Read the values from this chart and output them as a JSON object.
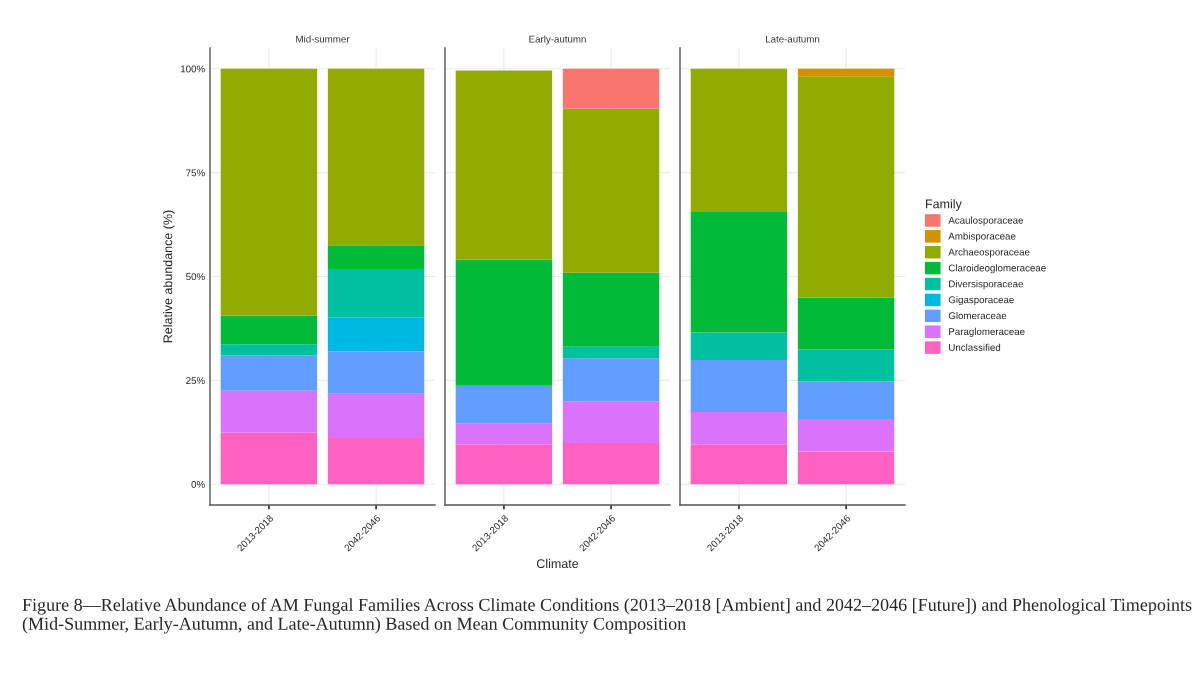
{
  "chart_data": [
    {
      "type": "bar",
      "title": "Mid-summer",
      "ylabel": "Relative abundance (%)",
      "categories": [
        "2013-2018",
        "2042-2046"
      ],
      "stacked": true,
      "ylim": [
        -5,
        105
      ],
      "yticks": [
        {
          "value": 0,
          "label": "0%"
        },
        {
          "value": 25,
          "label": "25%"
        },
        {
          "value": 50,
          "label": "50%"
        },
        {
          "value": 75,
          "label": "75%"
        },
        {
          "value": 100,
          "label": "100%"
        }
      ],
      "grid": true,
      "annotations": [
        "Figure 8—Relative Abundance of AM Fungal Families Across Climate Conditions (2013–2018 [Ambient] and 2042–2046 [Future]) and Phenological Timepoints (Mid-Summer, Early-Autumn, and Late-Autumn) Based on Mean Community Composition"
      ],
      "series": [
        {
          "color": "#ff61c3",
          "values": [
            12.4,
            11.1
          ]
        },
        {
          "color": "#db72fb",
          "values": [
            10.1,
            10.7
          ]
        },
        {
          "color": "#619cff",
          "values": [
            8.5,
            10.2
          ]
        },
        {
          "color": "#00b9e3",
          "values": [
            null,
            8.2
          ]
        },
        {
          "color": "#00c19f",
          "values": [
            2.7,
            11.6
          ]
        },
        {
          "color": "#00ba38",
          "values": [
            6.9,
            5.7
          ]
        },
        {
          "color": "#93aa00",
          "values": [
            59.4,
            42.5
          ]
        },
        {
          "color": "#d39200",
          "values": [
            null,
            null
          ]
        },
        {
          "color": "#f8766d",
          "values": [
            null,
            null
          ]
        }
      ]
    },
    {
      "type": "bar",
      "title": "Early-autumn",
      "xlabel": "Climate",
      "categories": [
        "2013-2018",
        "2042-2046"
      ],
      "stacked": true,
      "ylim": [
        -5,
        105
      ],
      "tick_labels": "x",
      "grid": true,
      "series": [
        {
          "color": "#ff61c3",
          "values": [
            9.6,
            9.9
          ]
        },
        {
          "color": "#db72fb",
          "values": [
            5.1,
            10.1
          ]
        },
        {
          "color": "#619cff",
          "values": [
            9.0,
            10.3
          ]
        },
        {
          "color": "#00b9e3",
          "values": [
            null,
            null
          ]
        },
        {
          "color": "#00c19f",
          "values": [
            null,
            2.8
          ]
        },
        {
          "color": "#00ba38",
          "values": [
            30.4,
            17.8
          ]
        },
        {
          "color": "#93aa00",
          "values": [
            45.5,
            39.5
          ]
        },
        {
          "color": "#d39200",
          "values": [
            null,
            null
          ]
        },
        {
          "color": "#f8766d",
          "values": [
            null,
            9.6
          ]
        }
      ]
    },
    {
      "type": "bar",
      "title": "Late-autumn",
      "categories": [
        "2013-2018",
        "2042-2046"
      ],
      "stacked": true,
      "ylim": [
        -5,
        105
      ],
      "tick_labels": "x",
      "grid": true,
      "legend": "right",
      "legend_title": "Family",
      "series": [
        {
          "name": "Unclassified",
          "color": "#ff61c3",
          "values": [
            9.5,
            7.9
          ]
        },
        {
          "name": "Paraglomeraceae",
          "color": "#db72fb",
          "values": [
            7.9,
            7.8
          ]
        },
        {
          "name": "Glomeraceae",
          "color": "#619cff",
          "values": [
            12.5,
            9.0
          ]
        },
        {
          "name": "Gigasporaceae",
          "color": "#00b9e3",
          "values": [
            null,
            null
          ]
        },
        {
          "name": "Diversisporaceae",
          "color": "#00c19f",
          "values": [
            6.6,
            7.7
          ]
        },
        {
          "name": "Claroideoglomeraceae",
          "color": "#00ba38",
          "values": [
            29.0,
            12.5
          ]
        },
        {
          "name": "Archaeosporaceae",
          "color": "#93aa00",
          "values": [
            34.5,
            53.3
          ]
        },
        {
          "name": "Ambisporaceae",
          "color": "#d39200",
          "values": [
            null,
            1.8
          ]
        },
        {
          "name": "Acaulosporaceae",
          "color": "#f8766d",
          "values": [
            null,
            null
          ]
        }
      ]
    }
  ]
}
